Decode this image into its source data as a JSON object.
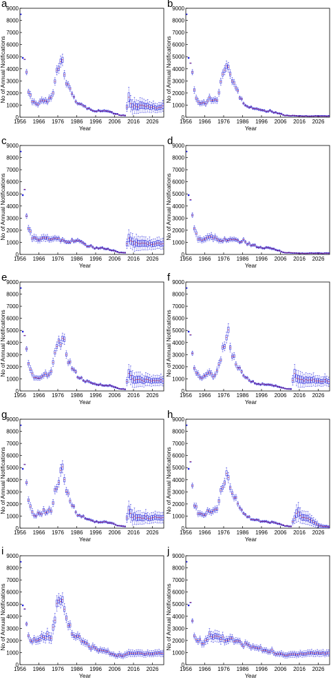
{
  "chart_data": [
    {
      "panel": "a",
      "type": "boxplot",
      "xlabel": "Year",
      "ylabel": "No of Annual Notifications",
      "ylim": [
        0,
        9000
      ],
      "xlim": [
        1956,
        2032
      ],
      "xticks": [
        1956,
        1966,
        1976,
        1986,
        1996,
        2006,
        2016,
        2026
      ],
      "yticks": [
        0,
        1000,
        2000,
        3000,
        4000,
        5000,
        6000,
        7000,
        8000,
        9000
      ],
      "curve": "a"
    },
    {
      "panel": "b",
      "type": "boxplot",
      "xlabel": "Year",
      "ylabel": "No of Annual Notifications",
      "ylim": [
        0,
        9000
      ],
      "xlim": [
        1956,
        2032
      ],
      "xticks": [
        1956,
        1966,
        1976,
        1986,
        1996,
        2006,
        2016,
        2026
      ],
      "yticks": [
        0,
        1000,
        2000,
        3000,
        4000,
        5000,
        6000,
        7000,
        8000,
        9000
      ],
      "curve": "b"
    },
    {
      "panel": "c",
      "type": "boxplot",
      "xlabel": "Year",
      "ylabel": "No of Annual Notifications",
      "ylim": [
        0,
        9000
      ],
      "xlim": [
        1956,
        2032
      ],
      "xticks": [
        1956,
        1966,
        1976,
        1986,
        1996,
        2006,
        2016,
        2026
      ],
      "yticks": [
        0,
        1000,
        2000,
        3000,
        4000,
        5000,
        6000,
        7000,
        8000,
        9000
      ],
      "curve": "c"
    },
    {
      "panel": "d",
      "type": "boxplot",
      "xlabel": "Year",
      "ylabel": "No of Annual Notifications",
      "ylim": [
        0,
        9000
      ],
      "xlim": [
        1956,
        2032
      ],
      "xticks": [
        1956,
        1966,
        1976,
        1986,
        1996,
        2006,
        2016,
        2026
      ],
      "yticks": [
        0,
        1000,
        2000,
        3000,
        4000,
        5000,
        6000,
        7000,
        8000,
        9000
      ],
      "curve": "d"
    },
    {
      "panel": "e",
      "type": "boxplot",
      "xlabel": "Year",
      "ylabel": "No of Annual Notifications",
      "ylim": [
        0,
        9000
      ],
      "xlim": [
        1956,
        2032
      ],
      "xticks": [
        1956,
        1966,
        1976,
        1986,
        1996,
        2006,
        2016,
        2026
      ],
      "yticks": [
        0,
        1000,
        2000,
        3000,
        4000,
        5000,
        6000,
        7000,
        8000,
        9000
      ],
      "curve": "a"
    },
    {
      "panel": "f",
      "type": "boxplot",
      "xlabel": "Year",
      "ylabel": "No of Annual Notifications",
      "ylim": [
        0,
        9000
      ],
      "xlim": [
        1956,
        2032
      ],
      "xticks": [
        1956,
        1966,
        1976,
        1986,
        1996,
        2006,
        2016,
        2026
      ],
      "yticks": [
        0,
        1000,
        2000,
        3000,
        4000,
        5000,
        6000,
        7000,
        8000,
        9000
      ],
      "curve": "a"
    },
    {
      "panel": "g",
      "type": "boxplot",
      "xlabel": "Year",
      "ylabel": "No of Annual Notifications",
      "ylim": [
        0,
        9000
      ],
      "xlim": [
        1956,
        2032
      ],
      "xticks": [
        1956,
        1966,
        1976,
        1986,
        1996,
        2006,
        2016,
        2026
      ],
      "yticks": [
        0,
        1000,
        2000,
        3000,
        4000,
        5000,
        6000,
        7000,
        8000,
        9000
      ],
      "curve": "a"
    },
    {
      "panel": "h",
      "type": "boxplot",
      "xlabel": "Year",
      "ylabel": "No of Annual Notifications",
      "ylim": [
        0,
        9000
      ],
      "xlim": [
        1956,
        2032
      ],
      "xticks": [
        1956,
        1966,
        1976,
        1986,
        1996,
        2006,
        2016,
        2026
      ],
      "yticks": [
        0,
        1000,
        2000,
        3000,
        4000,
        5000,
        6000,
        7000,
        8000,
        9000
      ],
      "curve": "h"
    },
    {
      "panel": "i",
      "type": "boxplot",
      "xlabel": "Year",
      "ylabel": "No of Annual Notifications",
      "ylim": [
        0,
        9000
      ],
      "xlim": [
        1956,
        2032
      ],
      "xticks": [
        1956,
        1966,
        1976,
        1986,
        1996,
        2006,
        2016,
        2026
      ],
      "yticks": [
        0,
        1000,
        2000,
        3000,
        4000,
        5000,
        6000,
        7000,
        8000,
        9000
      ],
      "curve": "i"
    },
    {
      "panel": "j",
      "type": "boxplot",
      "xlabel": "Year",
      "ylabel": "No of Annual Notifications",
      "ylim": [
        0,
        9000
      ],
      "xlim": [
        1956,
        2032
      ],
      "xticks": [
        1956,
        1966,
        1976,
        1986,
        1996,
        2006,
        2016,
        2026
      ],
      "yticks": [
        0,
        1000,
        2000,
        3000,
        4000,
        5000,
        6000,
        7000,
        8000,
        9000
      ],
      "curve": "j"
    }
  ],
  "curves": {
    "a": {
      "x": [
        1956,
        1958,
        1960,
        1962,
        1964,
        1966,
        1968,
        1970,
        1972,
        1974,
        1976,
        1978,
        1980,
        1982,
        1984,
        1986,
        1990,
        1995,
        2000,
        2004,
        2008,
        2011,
        2013,
        2015,
        2020,
        2026,
        2032
      ],
      "y": [
        8500,
        4900,
        2100,
        1300,
        1050,
        1200,
        1450,
        1300,
        1500,
        2900,
        4000,
        4600,
        3000,
        2300,
        1700,
        1200,
        800,
        550,
        500,
        400,
        180,
        150,
        1500,
        900,
        900,
        850,
        850
      ],
      "spread": [
        0,
        0,
        0.12,
        0.2,
        0.18,
        0.18,
        0.18,
        0.18,
        0.18,
        0.1,
        0.1,
        0.1,
        0.1,
        0.1,
        0.1,
        0.1,
        0.12,
        0.15,
        0.18,
        0.2,
        0.25,
        0.4,
        0.5,
        0.7,
        0.6,
        0.5,
        0.5
      ]
    },
    "b": {
      "x": [
        1956,
        1958,
        1960,
        1962,
        1964,
        1966,
        1968,
        1970,
        1972,
        1974,
        1976,
        1978,
        1980,
        1982,
        1984,
        1986,
        1990,
        1995,
        2000,
        2004,
        2008,
        2015,
        2032
      ],
      "y": [
        8500,
        4900,
        2100,
        1300,
        1050,
        1200,
        1450,
        1300,
        1500,
        2900,
        4000,
        4600,
        3000,
        2300,
        1700,
        1200,
        800,
        550,
        500,
        350,
        150,
        100,
        100
      ],
      "spread": [
        0,
        0,
        0.12,
        0.2,
        0.18,
        0.18,
        0.18,
        0.18,
        0.18,
        0.1,
        0.1,
        0.1,
        0.1,
        0.1,
        0.1,
        0.1,
        0.12,
        0.15,
        0.18,
        0.2,
        0.3,
        0.4,
        0.5
      ]
    },
    "c": {
      "x": [
        1956,
        1958,
        1960,
        1962,
        1966,
        1970,
        1976,
        1980,
        1986,
        1990,
        1995,
        2000,
        2004,
        2008,
        2011,
        2013,
        2016,
        2026,
        2032
      ],
      "y": [
        8500,
        4900,
        2100,
        1300,
        1300,
        1400,
        1200,
        1150,
        1100,
        800,
        550,
        500,
        350,
        150,
        150,
        1500,
        900,
        900,
        850
      ],
      "spread": [
        0,
        0,
        0.12,
        0.2,
        0.2,
        0.2,
        0.15,
        0.15,
        0.12,
        0.15,
        0.15,
        0.18,
        0.2,
        0.3,
        0.4,
        0.5,
        0.7,
        0.5,
        0.5
      ]
    },
    "d": {
      "x": [
        1956,
        1958,
        1960,
        1962,
        1966,
        1970,
        1976,
        1980,
        1986,
        1990,
        1995,
        2000,
        2004,
        2008,
        2015,
        2032
      ],
      "y": [
        8500,
        4900,
        2100,
        1300,
        1300,
        1400,
        1200,
        1150,
        1100,
        800,
        550,
        500,
        350,
        150,
        100,
        100
      ],
      "spread": [
        0,
        0,
        0.12,
        0.2,
        0.2,
        0.2,
        0.15,
        0.15,
        0.12,
        0.15,
        0.15,
        0.18,
        0.2,
        0.3,
        0.4,
        0.5
      ]
    },
    "h": {
      "x": [
        1956,
        1958,
        1960,
        1962,
        1964,
        1966,
        1968,
        1970,
        1972,
        1974,
        1976,
        1978,
        1980,
        1982,
        1984,
        1986,
        1990,
        1995,
        2000,
        2004,
        2008,
        2011,
        2014,
        2018,
        2022,
        2026,
        2032
      ],
      "y": [
        8500,
        4900,
        2100,
        1300,
        1050,
        1200,
        1450,
        1300,
        1500,
        2900,
        4000,
        4600,
        3000,
        2300,
        1700,
        1200,
        800,
        550,
        500,
        400,
        180,
        150,
        1300,
        900,
        600,
        200,
        100
      ],
      "spread": [
        0,
        0,
        0.12,
        0.2,
        0.18,
        0.18,
        0.18,
        0.18,
        0.18,
        0.1,
        0.1,
        0.1,
        0.1,
        0.1,
        0.1,
        0.1,
        0.12,
        0.15,
        0.18,
        0.2,
        0.25,
        0.4,
        0.6,
        0.6,
        0.7,
        0.9,
        1.0
      ]
    },
    "i": {
      "x": [
        1956,
        1958,
        1960,
        1964,
        1968,
        1972,
        1976,
        1978,
        1980,
        1984,
        1990,
        1996,
        2000,
        2004,
        2008,
        2014,
        2020,
        2026,
        2032
      ],
      "y": [
        8500,
        4900,
        2200,
        1800,
        2300,
        2500,
        5300,
        5200,
        3800,
        2500,
        1700,
        1250,
        1150,
        900,
        750,
        900,
        950,
        950,
        950
      ],
      "spread": [
        0,
        0,
        0.1,
        0.15,
        0.18,
        0.2,
        0.1,
        0.1,
        0.1,
        0.12,
        0.15,
        0.18,
        0.2,
        0.22,
        0.3,
        0.3,
        0.28,
        0.28,
        0.28
      ]
    },
    "j": {
      "x": [
        1956,
        1958,
        1960,
        1964,
        1968,
        1972,
        1978,
        1984,
        1990,
        1996,
        2000,
        2004,
        2008,
        2014,
        2020,
        2026,
        2032
      ],
      "y": [
        8500,
        4900,
        2200,
        1900,
        2300,
        2300,
        2100,
        1800,
        1500,
        1250,
        1150,
        900,
        750,
        900,
        950,
        950,
        950
      ],
      "spread": [
        0,
        0,
        0.1,
        0.15,
        0.18,
        0.2,
        0.15,
        0.12,
        0.15,
        0.18,
        0.2,
        0.22,
        0.3,
        0.3,
        0.28,
        0.28,
        0.28
      ]
    }
  },
  "colors": {
    "series": "#1f1fdc",
    "axis": "#000000"
  }
}
